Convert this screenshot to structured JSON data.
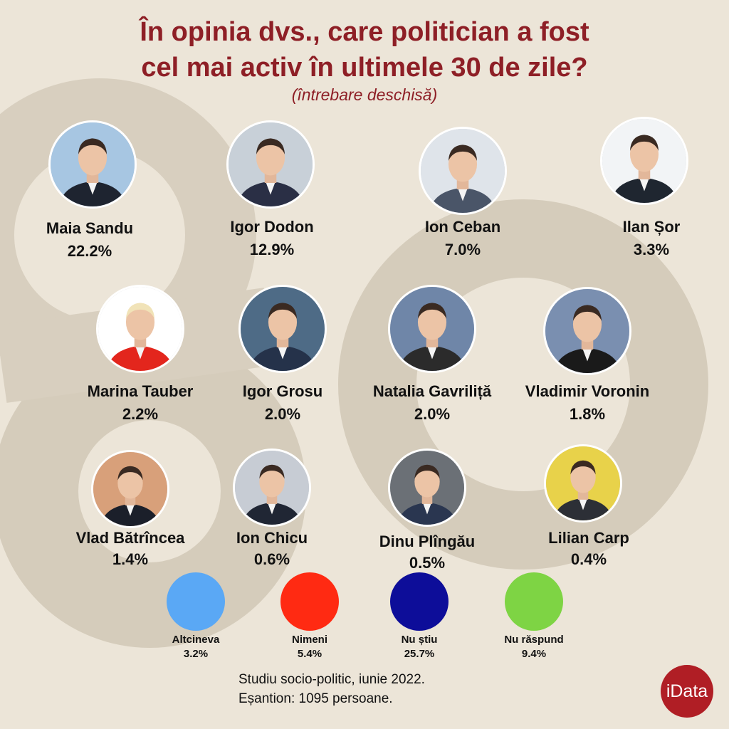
{
  "header": {
    "title_line1": "În opinia dvs., care politician a fost",
    "title_line2": "cel mai activ în ultimele 30 de zile?",
    "subtitle": "(întrebare deschisă)"
  },
  "politicians": [
    {
      "name": "Maia Sandu",
      "value": "22.2%"
    },
    {
      "name": "Igor Dodon",
      "value": "12.9%"
    },
    {
      "name": "Ion Ceban",
      "value": "7.0%"
    },
    {
      "name": "Ilan Șor",
      "value": "3.3%"
    },
    {
      "name": "Marina Tauber",
      "value": "2.2%"
    },
    {
      "name": "Igor Grosu",
      "value": "2.0%"
    },
    {
      "name": "Natalia Gavriliță",
      "value": "2.0%"
    },
    {
      "name": "Vladimir Voronin",
      "value": "1.8%"
    },
    {
      "name": "Vlad Bătrîncea",
      "value": "1.4%"
    },
    {
      "name": "Ion Chicu",
      "value": "0.6%"
    },
    {
      "name": "Dinu Plîngău",
      "value": "0.5%"
    },
    {
      "name": "Lilian Carp",
      "value": "0.4%"
    }
  ],
  "other_options": [
    {
      "label": "Altcineva",
      "value": "3.2%",
      "color": "#5aa8f5"
    },
    {
      "label": "Nimeni",
      "value": "5.4%",
      "color": "#ff2a12"
    },
    {
      "label": "Nu știu",
      "value": "25.7%",
      "color": "#0d0d99"
    },
    {
      "label": "Nu răspund",
      "value": "9.4%",
      "color": "#7ed444"
    }
  ],
  "footer": {
    "line1": "Studiu socio-politic, iunie 2022.",
    "line2": "Eșantion: 1095 persoane."
  },
  "logo": {
    "text": "iData"
  },
  "colors": {
    "title": "#8e1f26",
    "background": "#ece5d8",
    "logo": "#b01e25"
  }
}
